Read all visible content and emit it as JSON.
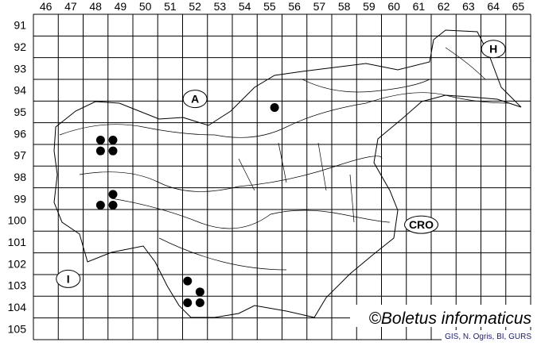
{
  "map": {
    "column_labels": [
      "46",
      "47",
      "48",
      "49",
      "50",
      "51",
      "52",
      "53",
      "54",
      "55",
      "56",
      "57",
      "58",
      "59",
      "60",
      "61",
      "62",
      "63",
      "64",
      "65"
    ],
    "row_labels": [
      "91",
      "92",
      "93",
      "94",
      "95",
      "96",
      "97",
      "98",
      "99",
      "100",
      "101",
      "102",
      "103",
      "104",
      "105"
    ],
    "country_labels": [
      {
        "text": "A",
        "col": 52.5,
        "row": 94.9
      },
      {
        "text": "H",
        "col": 64.5,
        "row": 92.6
      },
      {
        "text": "CRO",
        "col": 61.6,
        "row": 100.7
      },
      {
        "text": "I",
        "col": 47.4,
        "row": 103.2
      }
    ],
    "records": [
      {
        "col": 48.7,
        "row": 96.8
      },
      {
        "col": 49.2,
        "row": 96.8
      },
      {
        "col": 48.7,
        "row": 97.3
      },
      {
        "col": 49.2,
        "row": 97.3
      },
      {
        "col": 49.2,
        "row": 99.3
      },
      {
        "col": 48.7,
        "row": 99.8
      },
      {
        "col": 49.2,
        "row": 99.8
      },
      {
        "col": 55.7,
        "row": 95.3
      },
      {
        "col": 52.2,
        "row": 103.3
      },
      {
        "col": 52.7,
        "row": 103.8
      },
      {
        "col": 52.2,
        "row": 104.3
      },
      {
        "col": 52.7,
        "row": 104.3
      }
    ],
    "copyright": "©Boletus informaticus",
    "source": "GIS, N. Ogris, BI, GURS",
    "dot_color": "#000000"
  }
}
